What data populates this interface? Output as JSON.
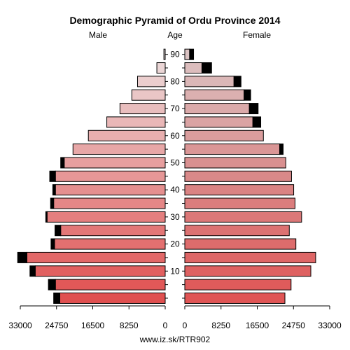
{
  "chart_data": {
    "type": "bar",
    "title": "Demographic Pyramid of Ordu Province 2014",
    "left_header": "Male",
    "center_header": "Age",
    "right_header": "Female",
    "source": "www.iz.sk/RTR902",
    "age_tick_labels": [
      "10",
      "20",
      "30",
      "40",
      "50",
      "60",
      "70",
      "80",
      "90"
    ],
    "x_tick_labels_left": [
      "33000",
      "24750",
      "16500",
      "8250",
      "0"
    ],
    "x_tick_labels_right": [
      "0",
      "8250",
      "16500",
      "24750",
      "33000"
    ],
    "xlim": [
      0,
      33000
    ],
    "categories": [
      "0-4",
      "5-9",
      "10-14",
      "15-19",
      "20-24",
      "25-29",
      "30-34",
      "35-39",
      "40-44",
      "45-49",
      "50-54",
      "55-59",
      "60-64",
      "65-69",
      "70-74",
      "75-79",
      "80-84",
      "85-89",
      "90+"
    ],
    "series": [
      {
        "name": "Male",
        "values": [
          24000,
          25000,
          29600,
          31500,
          25200,
          23800,
          26900,
          25400,
          25000,
          25000,
          23000,
          21000,
          17500,
          13300,
          10300,
          7600,
          6300,
          1900,
          300
        ],
        "excess": [
          1400,
          1600,
          1200,
          2100,
          800,
          1300,
          300,
          700,
          600,
          1300,
          800,
          0,
          0,
          0,
          0,
          0,
          0,
          0,
          0
        ]
      },
      {
        "name": "Female",
        "values": [
          22800,
          24200,
          28700,
          29800,
          25300,
          23800,
          26600,
          25100,
          24800,
          24300,
          23000,
          21600,
          17900,
          15500,
          14700,
          13500,
          11200,
          3900,
          1100
        ],
        "excess": [
          0,
          0,
          0,
          0,
          0,
          0,
          0,
          0,
          0,
          0,
          0,
          800,
          0,
          1800,
          2000,
          1500,
          1600,
          2200,
          900
        ]
      }
    ],
    "colors": {
      "male_young": "#e05050",
      "male_old": "#ecdede",
      "female_young": "#e05555",
      "female_mid": "#d98989",
      "female_old": "#dcc4c4",
      "excess": "#000000",
      "outline": "#000000"
    }
  }
}
